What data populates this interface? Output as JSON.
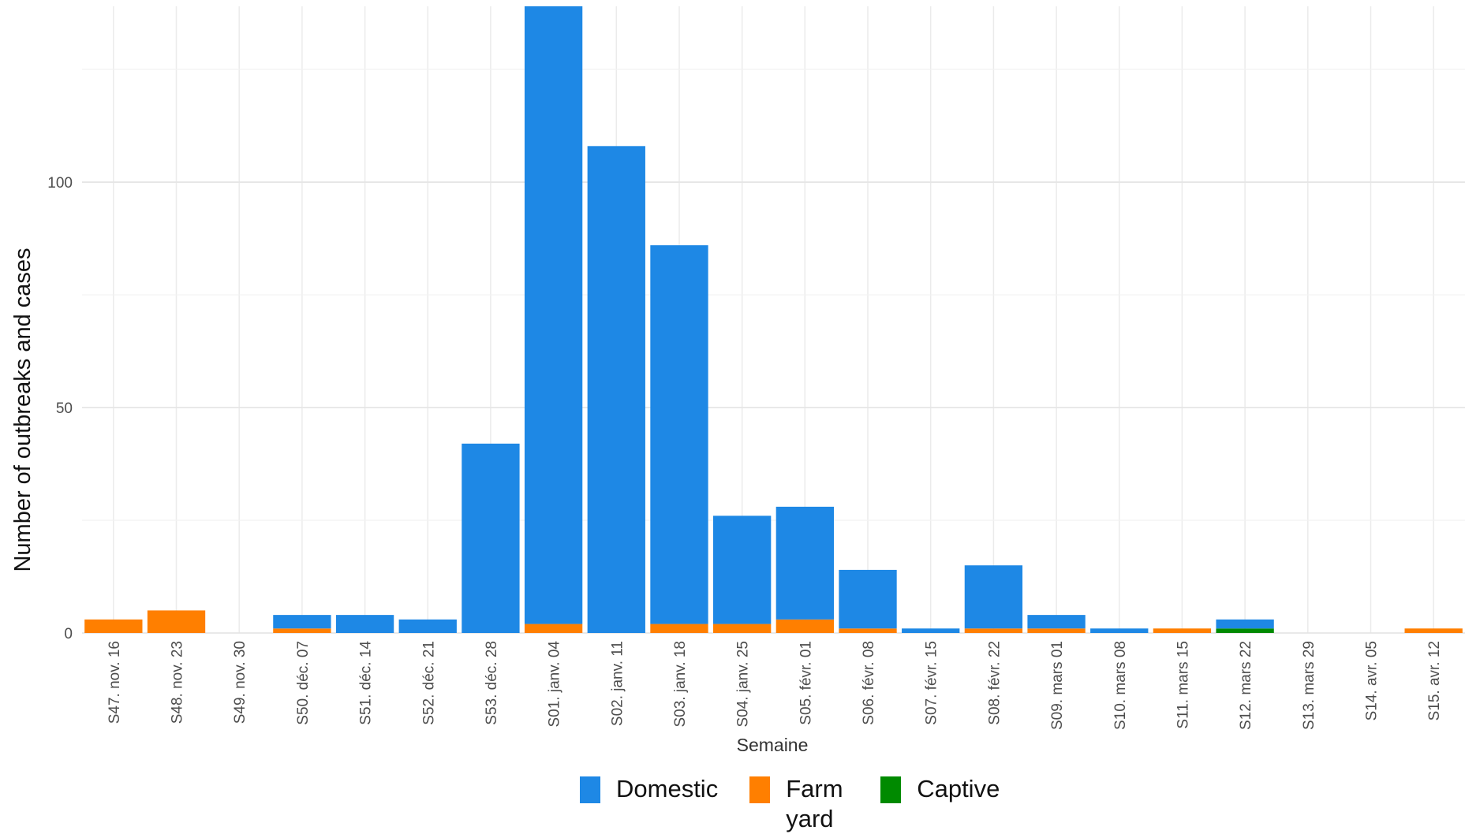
{
  "chart_data": {
    "type": "bar",
    "stacked": true,
    "title": "",
    "xlabel": "Semaine",
    "ylabel": "Number of outbreaks and cases",
    "ylim": [
      0,
      139
    ],
    "yticks": [
      0,
      50,
      100
    ],
    "grid": true,
    "legend_position": "bottom",
    "categories": [
      "S47. nov. 16",
      "S48. nov. 23",
      "S49. nov. 30",
      "S50. déc. 07",
      "S51. déc. 14",
      "S52. déc. 21",
      "S53. déc. 28",
      "S01. janv. 04",
      "S02. janv. 11",
      "S03. janv. 18",
      "S04. janv. 25",
      "S05. févr. 01",
      "S06. févr. 08",
      "S07. févr. 15",
      "S08. févr. 22",
      "S09. mars 01",
      "S10. mars 08",
      "S11. mars 15",
      "S12. mars 22",
      "S13. mars 29",
      "S14. avr. 05",
      "S15. avr. 12"
    ],
    "series": [
      {
        "name": "Captive",
        "color": "#008a00",
        "values": [
          0,
          0,
          0,
          0,
          0,
          0,
          0,
          0,
          0,
          0,
          0,
          0,
          0,
          0,
          0,
          0,
          0,
          0,
          1,
          0,
          0,
          0
        ]
      },
      {
        "name": "Farm yard",
        "color": "#ff7f00",
        "values": [
          3,
          5,
          0,
          1,
          0,
          0,
          0,
          2,
          0,
          2,
          2,
          3,
          1,
          0,
          1,
          1,
          0,
          1,
          0,
          0,
          0,
          1
        ]
      },
      {
        "name": "Domestic",
        "color": "#1e88e5",
        "values": [
          0,
          0,
          0,
          3,
          4,
          3,
          42,
          137,
          108,
          84,
          24,
          25,
          13,
          1,
          14,
          3,
          1,
          0,
          2,
          0,
          0,
          0
        ]
      }
    ]
  },
  "legend": {
    "items": [
      {
        "label": "Domestic",
        "color": "#1e88e5"
      },
      {
        "label": "Farm yard",
        "color": "#ff7f00"
      },
      {
        "label": "Captive",
        "color": "#008a00"
      }
    ]
  }
}
